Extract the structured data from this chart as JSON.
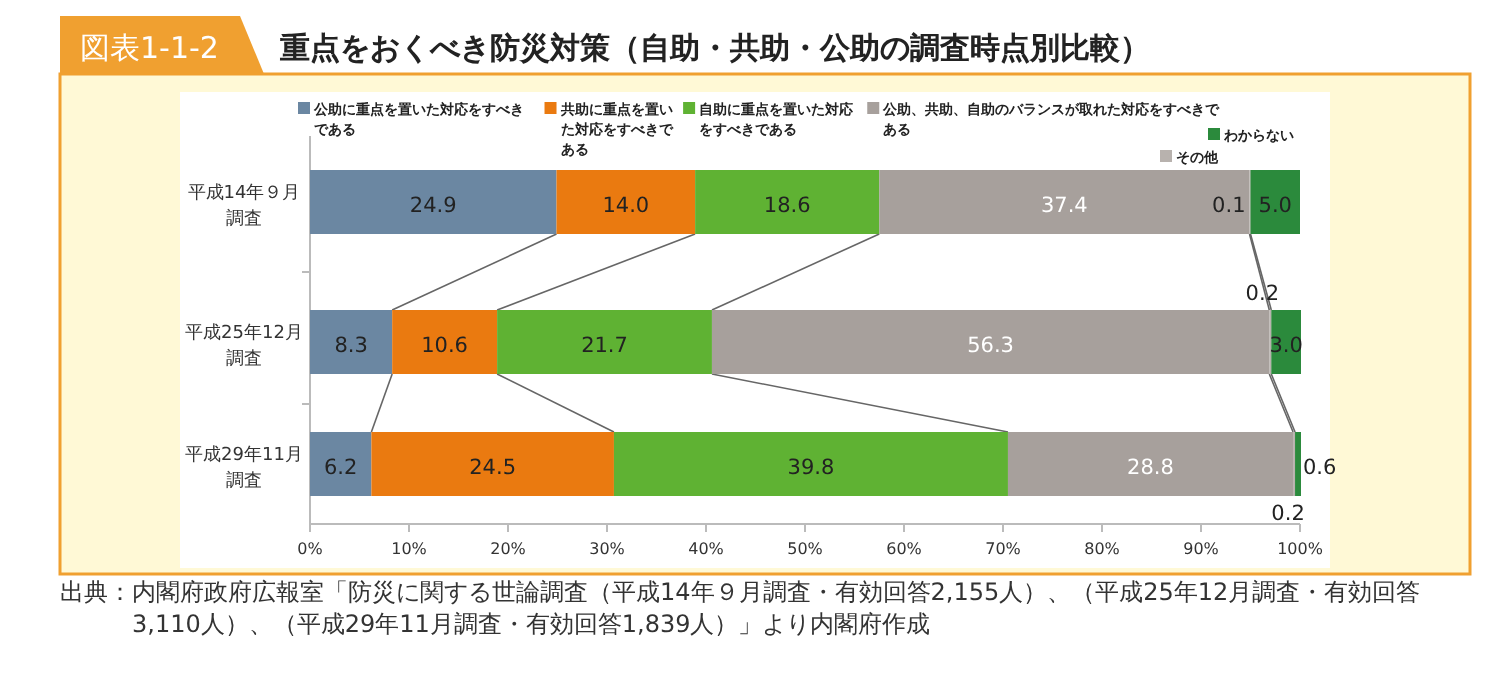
{
  "chart_data": {
    "type": "bar",
    "orientation": "horizontal",
    "stacked": true,
    "title": "重点をおくべき防災対策（自助・共助・公助の調査時点別比較）",
    "subtitle": "図表1-1-2",
    "categories": [
      "平成14年９月調査",
      "平成25年12月調査",
      "平成29年11月調査"
    ],
    "series": [
      {
        "name": "公助に重点を置いた対応をすべきである",
        "color": "#6b87a2",
        "values": [
          24.9,
          8.3,
          6.2
        ],
        "value_labels": [
          "24.9",
          "8.3",
          "6.2"
        ]
      },
      {
        "name": "共助に重点を置いた対応をすべきである",
        "color": "#ea7a10",
        "values": [
          14.0,
          10.6,
          24.5
        ],
        "value_labels": [
          "14.0",
          "10.6",
          "24.5"
        ]
      },
      {
        "name": "自助に重点を置いた対応をすべきである",
        "color": "#5fb233",
        "values": [
          18.6,
          21.7,
          39.8
        ],
        "value_labels": [
          "18.6",
          "21.7",
          "39.8"
        ]
      },
      {
        "name": "公助、共助、自助のバランスが取れた対応をすべきである",
        "color": "#a7a09c",
        "values": [
          37.4,
          56.3,
          28.8
        ],
        "value_labels": [
          "37.4",
          "56.3",
          "28.8"
        ]
      },
      {
        "name": "その他",
        "color": "#b8b2ae",
        "values": [
          0.1,
          0.2,
          0.2
        ],
        "value_labels": [
          "0.1",
          "0.2",
          "0.2"
        ]
      },
      {
        "name": "わからない",
        "color": "#2b8a3c",
        "values": [
          5.0,
          3.0,
          0.6
        ],
        "value_labels": [
          "5.0",
          "3.0",
          "0.6"
        ]
      }
    ],
    "xlim": [
      0,
      100
    ],
    "xticks": [
      {
        "value": 0,
        "label": "0%"
      },
      {
        "value": 10,
        "label": "10%"
      },
      {
        "value": 20,
        "label": "20%"
      },
      {
        "value": 30,
        "label": "30%"
      },
      {
        "value": 40,
        "label": "40%"
      },
      {
        "value": 50,
        "label": "50%"
      },
      {
        "value": 60,
        "label": "60%"
      },
      {
        "value": 70,
        "label": "70%"
      },
      {
        "value": 80,
        "label": "80%"
      },
      {
        "value": 90,
        "label": "90%"
      },
      {
        "value": 100,
        "label": "100%"
      }
    ],
    "legend": "top",
    "grid": false,
    "annotations": [
      "出典：内閣府政府広報室「防災に関する世論調査（平成14年９月調査・有効回答2,155人）、（平成25年12月調査・有効回答3,110人）、（平成29年11月調査・有効回答1,839人）」より内閣府作成"
    ]
  }
}
